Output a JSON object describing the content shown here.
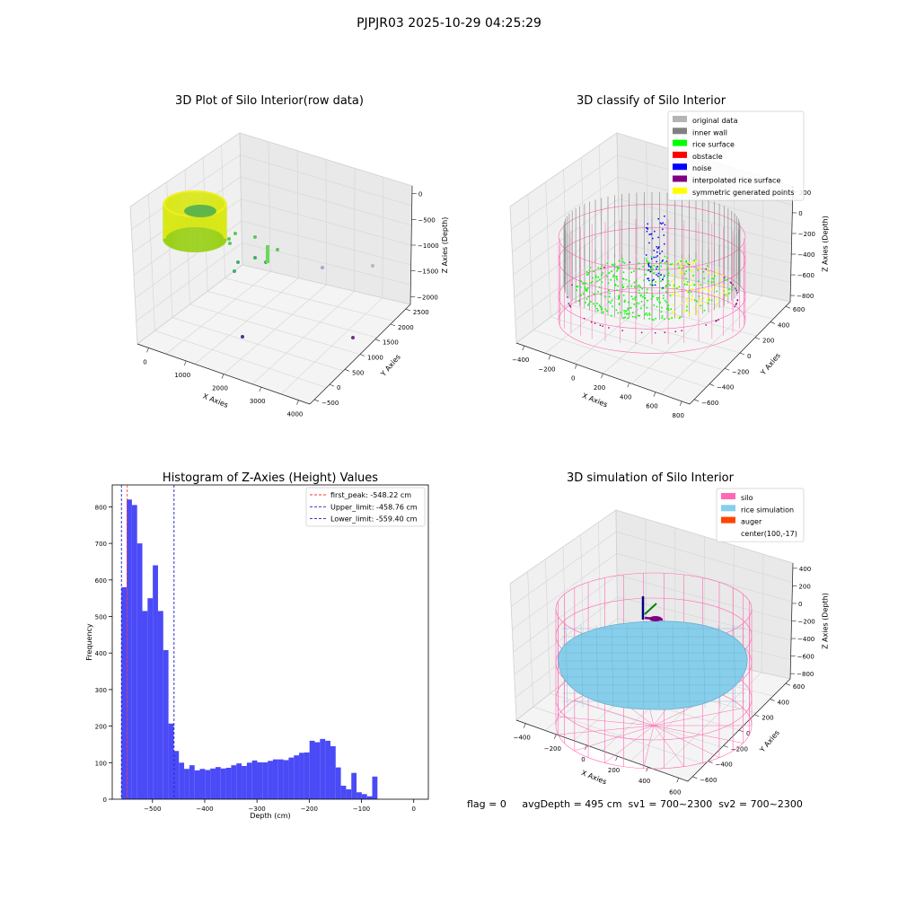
{
  "figure": {
    "title": "PJPJR03 2025-10-29 04:25:29",
    "footer": "flag = 0     avgDepth = 495 cm  sv1 = 700~2300  sv2 = 700~2300"
  },
  "colors": {
    "bar": "#4a4af7",
    "first_peak": "#ff3333",
    "limits": "#1c1ccc",
    "original_data": "#b4b4b4",
    "inner_wall": "#808080",
    "rice_surface": "#00ff00",
    "obstacle": "#ff0000",
    "noise": "#0000ff",
    "interpolated": "#800080",
    "symmetric": "#ffff00",
    "silo": "#ff69b4",
    "rice_sim": "#87ceeb",
    "auger": "#ff4500"
  },
  "chart_data": [
    {
      "type": "scatter",
      "panel": "3d-raw",
      "title": "3D Plot of Silo Interior(row data)",
      "xlabel": "X Axies",
      "ylabel": "Y Axies",
      "zlabel": "Z Axies (Depth)",
      "x_ticks": [
        "0",
        "1000",
        "2000",
        "3000",
        "4000"
      ],
      "y_ticks": [
        "−500",
        "0",
        "500",
        "1000",
        "1500",
        "2000",
        "2500"
      ],
      "z_ticks": [
        "0",
        "−500",
        "−1000",
        "−1500",
        "−2000"
      ],
      "grid": true
    },
    {
      "type": "scatter",
      "panel": "3d-classify",
      "title": "3D classify of Silo Interior",
      "xlabel": "X Axies",
      "ylabel": "Y Axies",
      "zlabel": "Z Axies (Depth)",
      "x_ticks": [
        "−400",
        "−200",
        "0",
        "200",
        "400",
        "600",
        "800"
      ],
      "y_ticks": [
        "−600",
        "−400",
        "−200",
        "0",
        "200",
        "400",
        "600"
      ],
      "z_ticks": [
        "200",
        "0",
        "−200",
        "−400",
        "−600",
        "−800"
      ],
      "legend_position": "top-right",
      "legend": [
        {
          "label": "original data",
          "color": "#b4b4b4"
        },
        {
          "label": "inner wall",
          "color": "#808080"
        },
        {
          "label": "rice surface",
          "color": "#00ff00"
        },
        {
          "label": "obstacle",
          "color": "#ff0000"
        },
        {
          "label": "noise",
          "color": "#0000ff"
        },
        {
          "label": "interpolated rice surface",
          "color": "#800080"
        },
        {
          "label": "symmetric generated points",
          "color": "#ffff00"
        }
      ],
      "grid": true
    },
    {
      "type": "bar",
      "panel": "histogram",
      "title": "Histogram of Z-Axies (Height) Values",
      "xlabel": "Depth (cm)",
      "ylabel": "Frequency",
      "xlim": [
        -577,
        28
      ],
      "ylim": [
        0,
        860
      ],
      "x_ticks": [
        -500,
        -400,
        -300,
        -200,
        -100,
        0
      ],
      "y_ticks": [
        0,
        100,
        200,
        300,
        400,
        500,
        600,
        700,
        800
      ],
      "bin_start": -559.4,
      "bin_width": 10.0,
      "values": [
        580,
        820,
        805,
        700,
        515,
        550,
        640,
        515,
        408,
        207,
        132,
        100,
        83,
        93,
        79,
        83,
        80,
        84,
        88,
        84,
        86,
        93,
        98,
        91,
        100,
        106,
        101,
        101,
        105,
        109,
        109,
        107,
        114,
        120,
        127,
        128,
        160,
        156,
        165,
        160,
        145,
        87,
        37,
        27,
        72,
        19,
        14,
        8,
        62
      ],
      "lines": [
        {
          "label": "first_peak: -548.22 cm",
          "value": -548.22,
          "color": "#ff3333"
        },
        {
          "label": "Upper_limit: -458.76 cm",
          "value": -458.76,
          "color": "#1c1ccc"
        },
        {
          "label": "Lower_limit: -559.40 cm",
          "value": -559.4,
          "color": "#1c1ccc"
        }
      ],
      "legend_position": "top-right",
      "grid": false
    },
    {
      "type": "scatter",
      "panel": "3d-simulation",
      "title": "3D simulation of Silo Interior",
      "xlabel": "X Axies",
      "ylabel": "Y Axies",
      "zlabel": "Z Axies (Depth)",
      "x_ticks": [
        "−400",
        "−200",
        "0",
        "200",
        "400",
        "600"
      ],
      "y_ticks": [
        "−600",
        "−400",
        "−200",
        "0",
        "200",
        "400",
        "600"
      ],
      "z_ticks": [
        "400",
        "200",
        "0",
        "−200",
        "−400",
        "−600",
        "−800"
      ],
      "legend_position": "top-right",
      "legend": [
        {
          "label": "silo",
          "color": "#ff69b4"
        },
        {
          "label": "rice simulation",
          "color": "#87ceeb"
        },
        {
          "label": "auger",
          "color": "#ff4500"
        },
        {
          "label": "center(100,-17)",
          "color": ""
        }
      ],
      "grid": true
    }
  ]
}
